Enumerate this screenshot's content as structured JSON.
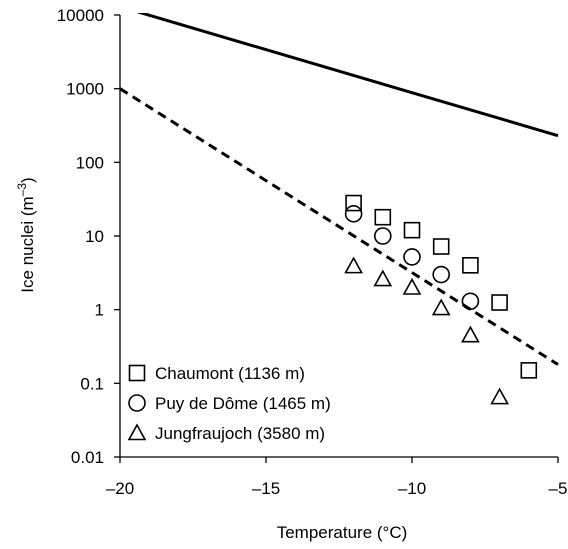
{
  "chart_data": {
    "type": "scatter",
    "xlabel": "Temperature (°C)",
    "ylabel_main": "Ice nuclei (m",
    "ylabel_sup": "–3",
    "ylabel_close": ")",
    "x_range": [
      -20,
      -5
    ],
    "y_range": [
      0.01,
      10000
    ],
    "y_scale": "log",
    "grid": false,
    "legend_position": "bottom-left",
    "x_ticks": [
      -20,
      -15,
      -10,
      -5
    ],
    "x_tick_labels": [
      "–20",
      "–15",
      "–10",
      "–5"
    ],
    "y_ticks": [
      0.01,
      0.1,
      1,
      10,
      100,
      1000,
      10000
    ],
    "y_tick_labels": [
      "0.01",
      "0.1",
      "1",
      "10",
      "100",
      "1000",
      "10000"
    ],
    "lines": [
      {
        "style": "solid",
        "color": "#000000",
        "x": [
          -20,
          -5
        ],
        "y": [
          13000,
          230
        ]
      },
      {
        "style": "dashed",
        "color": "#000000",
        "x": [
          -20,
          -5
        ],
        "y": [
          1000,
          0.18
        ]
      }
    ],
    "series": [
      {
        "name": "Chaumont (1136 m)",
        "marker": "square",
        "x": [
          -12,
          -11,
          -10,
          -9,
          -8,
          -7,
          -6
        ],
        "y": [
          28,
          18,
          12,
          7.2,
          4,
          1.25,
          0.15
        ]
      },
      {
        "name": "Puy de Dôme (1465 m)",
        "marker": "circle",
        "x": [
          -12,
          -11,
          -10,
          -9,
          -8
        ],
        "y": [
          20,
          10,
          5.2,
          3,
          1.3
        ]
      },
      {
        "name": "Jungfraujoch (3580 m)",
        "marker": "triangle",
        "x": [
          -12,
          -11,
          -10,
          -9,
          -8,
          -7
        ],
        "y": [
          3.9,
          2.6,
          2,
          1.05,
          0.45,
          0.065
        ]
      }
    ]
  }
}
